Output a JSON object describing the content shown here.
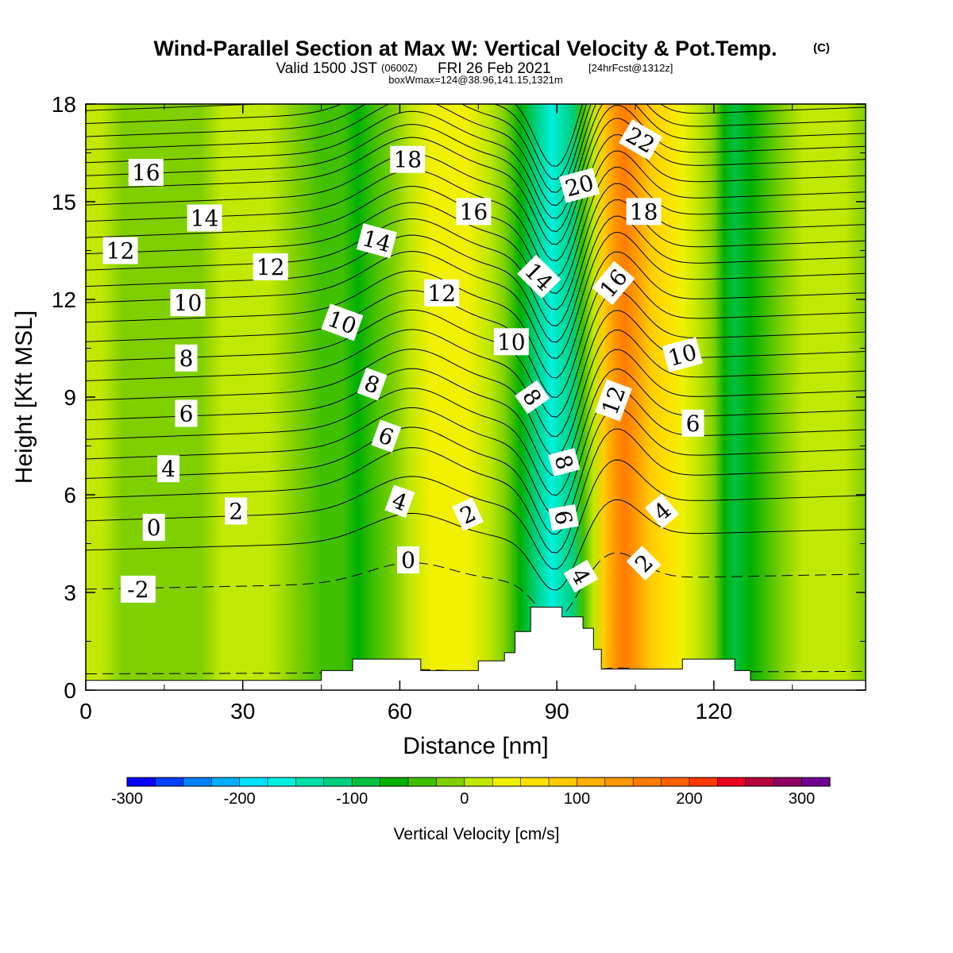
{
  "chart_data": {
    "type": "heatmap",
    "title": "Wind-Parallel Section at Max W: Vertical Velocity & Pot.Temp.",
    "title_suffix": "(C)",
    "subtitle_valid": "Valid 1500 JST",
    "subtitle_zulu": "(0600Z)",
    "subtitle_date": "FRI 26 Feb 2021",
    "subtitle_fcst": "[24hrFcst@1312z]",
    "subtitle_box": "boxWmax=124@38.96,141.15,1321m",
    "xlabel": "Distance [nm]",
    "ylabel": "Height [Kft MSL]",
    "xlim": [
      0,
      149
    ],
    "ylim": [
      0,
      18
    ],
    "xticks": [
      "0",
      "30",
      "60",
      "90",
      "120"
    ],
    "yticks": [
      "0",
      "3",
      "6",
      "9",
      "12",
      "15",
      "18"
    ],
    "colorbar": {
      "label": "Vertical Velocity [cm/s]",
      "tick_labels": [
        "-300",
        "-200",
        "-100",
        "0",
        "100",
        "200",
        "300"
      ],
      "range": [
        -300,
        325
      ],
      "colors": [
        "#0000ff",
        "#0040ff",
        "#0080ff",
        "#00b0ff",
        "#00e0ff",
        "#00f0e0",
        "#00e0a8",
        "#00d080",
        "#00c040",
        "#00b000",
        "#40c000",
        "#80d000",
        "#c0e800",
        "#f0f000",
        "#ffe000",
        "#ffcc00",
        "#ffb000",
        "#ff9800",
        "#ff7c00",
        "#ff6000",
        "#ff3800",
        "#e8001c",
        "#b8003c",
        "#900060",
        "#700090"
      ]
    },
    "vertical_velocity_columns": [
      {
        "x": 0,
        "w": 15
      },
      {
        "x": 3,
        "w": 5
      },
      {
        "x": 7,
        "w": -5
      },
      {
        "x": 12,
        "w": -12
      },
      {
        "x": 17,
        "w": -15
      },
      {
        "x": 22,
        "w": -8
      },
      {
        "x": 26,
        "w": 2
      },
      {
        "x": 30,
        "w": 8
      },
      {
        "x": 35,
        "w": 5
      },
      {
        "x": 40,
        "w": -10
      },
      {
        "x": 45,
        "w": -30
      },
      {
        "x": 49,
        "w": -50
      },
      {
        "x": 52,
        "w": -55
      },
      {
        "x": 55,
        "w": -30
      },
      {
        "x": 59,
        "w": -10
      },
      {
        "x": 62,
        "w": 5
      },
      {
        "x": 66,
        "w": 25
      },
      {
        "x": 70,
        "w": 40
      },
      {
        "x": 73,
        "w": 25
      },
      {
        "x": 77,
        "w": 5
      },
      {
        "x": 80,
        "w": -15
      },
      {
        "x": 83,
        "w": -60
      },
      {
        "x": 86,
        "w": -110
      },
      {
        "x": 89,
        "w": -175
      },
      {
        "x": 91,
        "w": -145
      },
      {
        "x": 93,
        "w": -110
      },
      {
        "x": 95,
        "w": -45
      },
      {
        "x": 97,
        "w": 10
      },
      {
        "x": 99,
        "w": 90
      },
      {
        "x": 101,
        "w": 130
      },
      {
        "x": 103,
        "w": 155
      },
      {
        "x": 105,
        "w": 135
      },
      {
        "x": 108,
        "w": 95
      },
      {
        "x": 111,
        "w": 55
      },
      {
        "x": 114,
        "w": 30
      },
      {
        "x": 117,
        "w": 0
      },
      {
        "x": 120,
        "w": -20
      },
      {
        "x": 122,
        "w": -55
      },
      {
        "x": 124,
        "w": -95
      },
      {
        "x": 127,
        "w": -75
      },
      {
        "x": 130,
        "w": -45
      },
      {
        "x": 133,
        "w": -10
      },
      {
        "x": 137,
        "w": 10
      },
      {
        "x": 141,
        "w": 20
      },
      {
        "x": 145,
        "w": 5
      },
      {
        "x": 149,
        "w": -5
      }
    ],
    "terrain": [
      {
        "x": 0,
        "h": 0.3
      },
      {
        "x": 45,
        "h": 0.3
      },
      {
        "x": 45,
        "h": 0.6
      },
      {
        "x": 51,
        "h": 0.6
      },
      {
        "x": 51,
        "h": 0.95
      },
      {
        "x": 64,
        "h": 0.95
      },
      {
        "x": 64,
        "h": 0.6
      },
      {
        "x": 75,
        "h": 0.6
      },
      {
        "x": 75,
        "h": 0.9
      },
      {
        "x": 80,
        "h": 0.9
      },
      {
        "x": 80,
        "h": 1.15
      },
      {
        "x": 82,
        "h": 1.15
      },
      {
        "x": 82,
        "h": 1.8
      },
      {
        "x": 85,
        "h": 1.8
      },
      {
        "x": 85,
        "h": 2.55
      },
      {
        "x": 91,
        "h": 2.55
      },
      {
        "x": 91,
        "h": 2.25
      },
      {
        "x": 95,
        "h": 2.25
      },
      {
        "x": 95,
        "h": 1.9
      },
      {
        "x": 97,
        "h": 1.9
      },
      {
        "x": 97,
        "h": 1.25
      },
      {
        "x": 98.5,
        "h": 1.25
      },
      {
        "x": 98.5,
        "h": 0.65
      },
      {
        "x": 114,
        "h": 0.65
      },
      {
        "x": 114,
        "h": 0.95
      },
      {
        "x": 124,
        "h": 0.95
      },
      {
        "x": 124,
        "h": 0.6
      },
      {
        "x": 127,
        "h": 0.6
      },
      {
        "x": 127,
        "h": 0.3
      },
      {
        "x": 149,
        "h": 0.3
      }
    ],
    "isentrope_heights_at_x0": [
      0.5,
      3.1,
      4.3,
      5.2,
      5.9,
      6.5,
      7.1,
      7.7,
      8.3,
      8.9,
      9.5,
      10.1,
      10.7,
      11.3,
      11.9,
      12.4,
      12.9,
      13.4,
      13.9,
      14.4,
      14.9,
      15.4,
      15.8,
      16.2,
      16.6,
      17.0,
      17.4,
      17.8
    ],
    "contour_labels": [
      {
        "text": "16",
        "x": 11.5,
        "y": 15.9,
        "rot": 0
      },
      {
        "text": "14",
        "x": 22.7,
        "y": 14.5,
        "rot": 0
      },
      {
        "text": "12",
        "x": 6.6,
        "y": 13.5,
        "rot": 0
      },
      {
        "text": "12",
        "x": 35.3,
        "y": 13.0,
        "rot": 0
      },
      {
        "text": "10",
        "x": 19.5,
        "y": 11.9,
        "rot": 0
      },
      {
        "text": "8",
        "x": 19.2,
        "y": 10.2,
        "rot": 0
      },
      {
        "text": "6",
        "x": 19.2,
        "y": 8.5,
        "rot": 0
      },
      {
        "text": "4",
        "x": 15.8,
        "y": 6.8,
        "rot": 0
      },
      {
        "text": "2",
        "x": 28.7,
        "y": 5.5,
        "rot": 0
      },
      {
        "text": "0",
        "x": 13.0,
        "y": 5.0,
        "rot": 0
      },
      {
        "text": "-2",
        "x": 10.0,
        "y": 3.1,
        "rot": 0
      },
      {
        "text": "18",
        "x": 61.5,
        "y": 16.3,
        "rot": 0
      },
      {
        "text": "16",
        "x": 74.1,
        "y": 14.7,
        "rot": 0
      },
      {
        "text": "14",
        "x": 55.6,
        "y": 13.8,
        "rot": 15
      },
      {
        "text": "12",
        "x": 68.0,
        "y": 12.2,
        "rot": 0
      },
      {
        "text": "10",
        "x": 49.0,
        "y": 11.3,
        "rot": 20
      },
      {
        "text": "8",
        "x": 54.7,
        "y": 9.4,
        "rot": 20
      },
      {
        "text": "6",
        "x": 57.4,
        "y": 7.8,
        "rot": 20
      },
      {
        "text": "4",
        "x": 60.0,
        "y": 5.8,
        "rot": 20
      },
      {
        "text": "2",
        "x": 73.0,
        "y": 5.4,
        "rot": -25
      },
      {
        "text": "0",
        "x": 61.6,
        "y": 4.0,
        "rot": 0
      },
      {
        "text": "20",
        "x": 94.3,
        "y": 15.5,
        "rot": -15
      },
      {
        "text": "22",
        "x": 106.0,
        "y": 16.9,
        "rot": 30
      },
      {
        "text": "18",
        "x": 106.6,
        "y": 14.7,
        "rot": 0
      },
      {
        "text": "16",
        "x": 100.8,
        "y": 12.5,
        "rot": -50
      },
      {
        "text": "14",
        "x": 86.6,
        "y": 12.7,
        "rot": 45
      },
      {
        "text": "10",
        "x": 81.3,
        "y": 10.7,
        "rot": 0
      },
      {
        "text": "10",
        "x": 114.0,
        "y": 10.3,
        "rot": -15
      },
      {
        "text": "8",
        "x": 85.3,
        "y": 9.0,
        "rot": 55
      },
      {
        "text": "12",
        "x": 100.8,
        "y": 8.9,
        "rot": -70
      },
      {
        "text": "8",
        "x": 91.4,
        "y": 7.0,
        "rot": 75
      },
      {
        "text": "6",
        "x": 116.0,
        "y": 8.2,
        "rot": 0
      },
      {
        "text": "6",
        "x": 91.3,
        "y": 5.3,
        "rot": 80
      },
      {
        "text": "4",
        "x": 110.1,
        "y": 5.5,
        "rot": -40
      },
      {
        "text": "4",
        "x": 94.6,
        "y": 3.5,
        "rot": 60
      },
      {
        "text": "2",
        "x": 106.6,
        "y": 3.9,
        "rot": -45
      }
    ]
  }
}
